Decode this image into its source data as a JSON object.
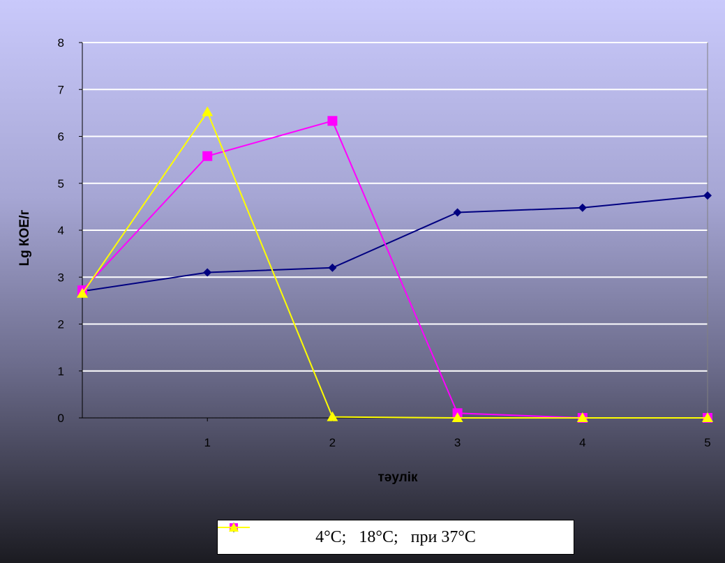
{
  "chart_data": {
    "type": "line",
    "xlabel": "тәулік",
    "ylabel": "Lg КОЕ/г",
    "x_ticks": [
      "1",
      "2",
      "3",
      "4",
      "5"
    ],
    "y_ticks": [
      "0",
      "1",
      "2",
      "3",
      "4",
      "5",
      "6",
      "7",
      "8"
    ],
    "xlim": [
      0,
      5
    ],
    "ylim": [
      0,
      8
    ],
    "grid": true,
    "legend_position": "bottom",
    "x": [
      0,
      1,
      2,
      3,
      4,
      5
    ],
    "series": [
      {
        "name": "4°C;",
        "color": "#000080",
        "marker": "diamond",
        "values": [
          2.7,
          3.1,
          3.2,
          4.38,
          4.48,
          4.74
        ]
      },
      {
        "name": "18°C;",
        "color": "#ff00ff",
        "marker": "square",
        "values": [
          2.72,
          5.58,
          6.33,
          0.1,
          0.0,
          0.0
        ]
      },
      {
        "name": "при 37°C",
        "color": "#ffff00",
        "marker": "triangle",
        "values": [
          2.65,
          6.52,
          0.02,
          0.0,
          0.0,
          0.0
        ]
      }
    ]
  }
}
